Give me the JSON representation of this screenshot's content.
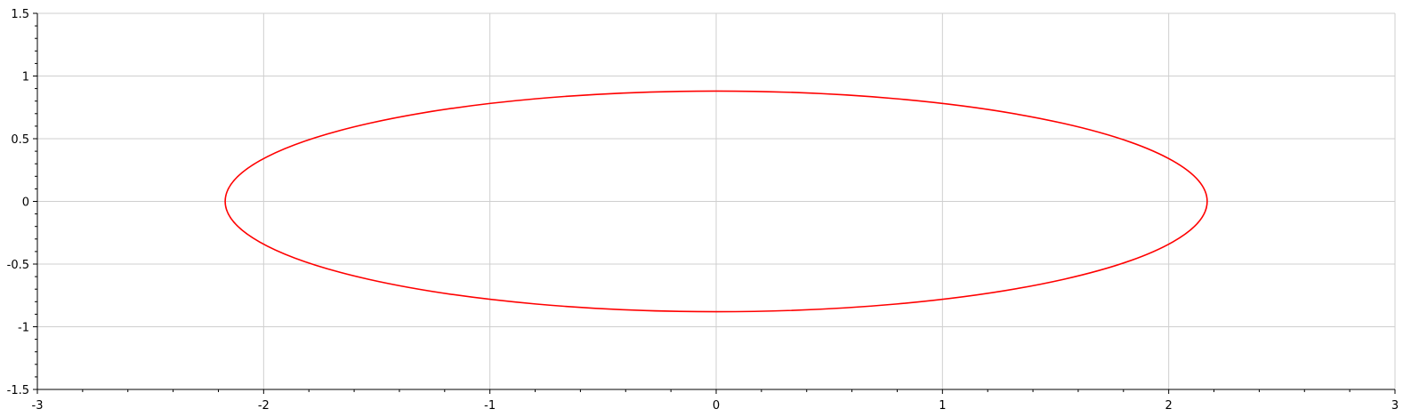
{
  "chart_data": {
    "type": "line",
    "title": "",
    "xlabel": "",
    "ylabel": "",
    "xlim": [
      -3,
      3
    ],
    "ylim": [
      -1.5,
      1.5
    ],
    "grid": true,
    "x_ticks": [
      {
        "value": -3,
        "label": "-3"
      },
      {
        "value": -2,
        "label": "-2"
      },
      {
        "value": -1,
        "label": "-1"
      },
      {
        "value": 0,
        "label": "0"
      },
      {
        "value": 1,
        "label": "1"
      },
      {
        "value": 2,
        "label": "2"
      },
      {
        "value": 3,
        "label": "3"
      }
    ],
    "y_ticks": [
      {
        "value": 1.5,
        "label": "1.5"
      },
      {
        "value": 1,
        "label": "1"
      },
      {
        "value": 0.5,
        "label": "0.5"
      },
      {
        "value": 0,
        "label": "0"
      },
      {
        "value": -0.5,
        "label": "-0.5"
      },
      {
        "value": -1,
        "label": "-1"
      },
      {
        "value": -1.5,
        "label": "-1.5"
      }
    ],
    "series": [
      {
        "shape": "ellipse",
        "center": [
          0,
          0
        ],
        "semi_axis_x": 2.17,
        "semi_axis_y": 0.88,
        "color": "#ff0000"
      }
    ]
  },
  "colors": {
    "grid": "#cfcfcf",
    "axis": "#000000",
    "background": "#ffffff"
  }
}
